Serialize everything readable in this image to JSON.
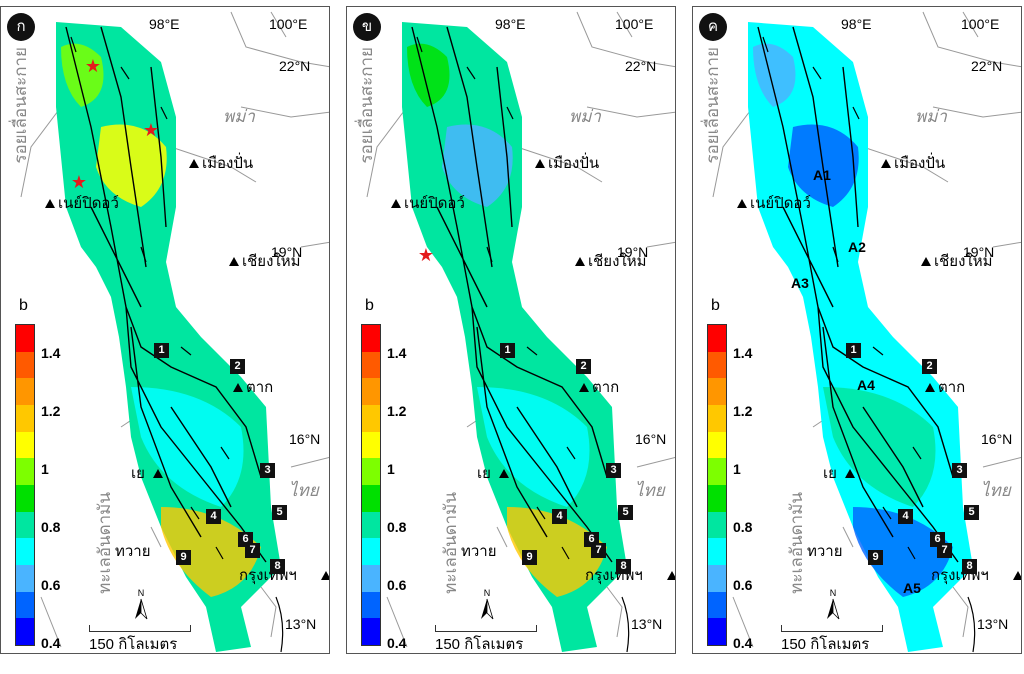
{
  "panels": [
    {
      "label": "ก",
      "stars": [
        [
          92,
          60
        ],
        [
          150,
          124
        ],
        [
          78,
          176
        ]
      ],
      "zones": []
    },
    {
      "label": "ข",
      "stars": [
        [
          425,
          249
        ]
      ],
      "zones": []
    },
    {
      "label": "ค",
      "stars": [],
      "zones": [
        {
          "text": "A1"
        },
        {
          "text": "A2"
        },
        {
          "text": "A3"
        },
        {
          "text": "A4"
        },
        {
          "text": "A5"
        }
      ]
    }
  ],
  "coords": {
    "lon98": "98°E",
    "lon100": "100°E",
    "lat22": "22°N",
    "lat19": "19°N",
    "lat16": "16°N",
    "lat13": "13°N"
  },
  "places": {
    "fault": "รอยเลื่อนสะกาย",
    "myanmar": "พม่า",
    "mueangpan": "เมืองปั่น",
    "naypyidaw": "เนย์ปิดอว์",
    "chiangmai": "เชียงใหม่",
    "tak": "ตาก",
    "ye": "เย",
    "thailand": "ไทย",
    "tavoy": "ทวาย",
    "bangkok": "กรุงเทพฯ",
    "andaman": "ทะเลอันดามัน"
  },
  "legend": {
    "title": "b",
    "ticks": [
      "1.4",
      "1.2",
      "1",
      "0.8",
      "0.6",
      "0.4"
    ],
    "colors": [
      "#ff0000",
      "#ff5a00",
      "#ff9600",
      "#ffc800",
      "#ffff00",
      "#7dff00",
      "#00e000",
      "#00e6a0",
      "#00ffff",
      "#4ab4ff",
      "#0064ff",
      "#0000ff"
    ]
  },
  "scale": {
    "label": "150 กิโลเมตร",
    "north": "N"
  },
  "markers": [
    "1",
    "2",
    "3",
    "4",
    "5",
    "6",
    "7",
    "8",
    "9"
  ]
}
